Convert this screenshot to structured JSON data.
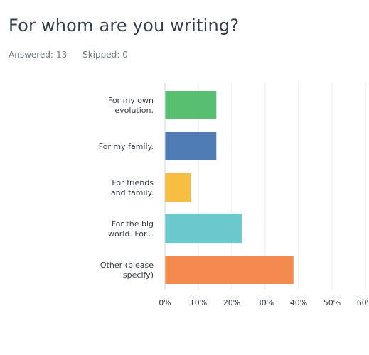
{
  "question": {
    "title": "For whom are you writing?",
    "answered_label": "Answered:",
    "answered_value": "13",
    "skipped_label": "Skipped:",
    "skipped_value": "0"
  },
  "chart_data": {
    "type": "bar",
    "orientation": "horizontal",
    "categories": [
      [
        "For my own",
        "evolution."
      ],
      [
        "For my family."
      ],
      [
        "For friends",
        "and family."
      ],
      [
        "For the big",
        "world. For..."
      ],
      [
        "Other (please",
        "specify)"
      ]
    ],
    "values": [
      15.38,
      15.38,
      7.69,
      23.08,
      38.46
    ],
    "colors": [
      "#57bf6f",
      "#507cb6",
      "#f6bf42",
      "#6bc8cd",
      "#f38b4e"
    ],
    "xlim": [
      0,
      60
    ],
    "xticks": [
      "0%",
      "10%",
      "20%",
      "30%",
      "40%",
      "50%",
      "60%"
    ],
    "grid": true
  }
}
